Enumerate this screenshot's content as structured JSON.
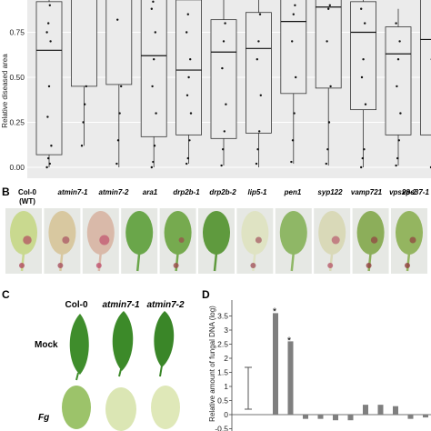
{
  "panels": {
    "B": "B",
    "C": "C",
    "D": "D"
  },
  "panel_a": {
    "ylabel": "Relative diseased area",
    "ticks": [
      "0.00",
      "0.25",
      "0.50",
      "0.75"
    ],
    "genotypes": [
      "Col-0",
      "atmin7-1",
      "atmin7-2",
      "ara1",
      "drp2b-1",
      "drp2b-2",
      "lip5-1",
      "pen1",
      "syp122",
      "vamp721",
      "vps28-2",
      "vps37-1"
    ],
    "wt_note": "(WT)"
  },
  "panel_c": {
    "columns": [
      "Col-0",
      "atmin7-1",
      "atmin7-2"
    ],
    "rows": [
      "Mock",
      "Fg"
    ]
  },
  "panel_d": {
    "ylabel": "Relative amount of fungal DNA (log)",
    "ticks": [
      "3.5",
      "3",
      "2.5",
      "2",
      "1.5",
      "1",
      "0.5",
      "0",
      "-0.5"
    ],
    "sig_marks": [
      "*",
      "*"
    ]
  },
  "chart_data": [
    {
      "type": "box",
      "ylabel": "Relative diseased area",
      "ylim": [
        -0.05,
        1.0
      ],
      "categories": [
        "Col-0",
        "atmin7-1",
        "atmin7-2",
        "ara1",
        "drp2b-1",
        "drp2b-2",
        "lip5-1",
        "pen1",
        "syp122",
        "vamp721",
        "vps28-2",
        "vps37-1"
      ],
      "boxes": [
        {
          "q1": 0.07,
          "median": 0.65,
          "q3": 0.92,
          "lo": 0.0,
          "hi": 1.0
        },
        {
          "q1": 0.45,
          "median": 0.95,
          "q3": 1.0,
          "lo": 0.12,
          "hi": 1.0
        },
        {
          "q1": 0.46,
          "median": 0.97,
          "q3": 1.0,
          "lo": 0.0,
          "hi": 1.0
        },
        {
          "q1": 0.17,
          "median": 0.62,
          "q3": 0.95,
          "lo": 0.0,
          "hi": 1.0
        },
        {
          "q1": 0.18,
          "median": 0.54,
          "q3": 0.93,
          "lo": 0.02,
          "hi": 1.0
        },
        {
          "q1": 0.16,
          "median": 0.64,
          "q3": 0.82,
          "lo": 0.01,
          "hi": 0.95
        },
        {
          "q1": 0.19,
          "median": 0.66,
          "q3": 0.86,
          "lo": 0.0,
          "hi": 0.95
        },
        {
          "q1": 0.41,
          "median": 0.81,
          "q3": 0.98,
          "lo": 0.02,
          "hi": 1.0
        },
        {
          "q1": 0.44,
          "median": 0.89,
          "q3": 1.0,
          "lo": 0.01,
          "hi": 1.0
        },
        {
          "q1": 0.32,
          "median": 0.75,
          "q3": 0.92,
          "lo": 0.0,
          "hi": 1.0
        },
        {
          "q1": 0.18,
          "median": 0.63,
          "q3": 0.78,
          "lo": 0.01,
          "hi": 0.88
        },
        {
          "q1": 0.18,
          "median": 0.71,
          "q3": 1.0,
          "lo": 0.0,
          "hi": 1.0
        }
      ],
      "points": [
        [
          0.0,
          0.05,
          0.02,
          0.12,
          0.28,
          0.45,
          0.7,
          0.75,
          0.8,
          0.9,
          0.95
        ],
        [
          0.12,
          0.25,
          0.35,
          0.45,
          0.95,
          1.0
        ],
        [
          0.02,
          0.15,
          0.3,
          0.45,
          0.82,
          1.0
        ],
        [
          0.0,
          0.03,
          0.12,
          0.3,
          0.45,
          0.6,
          0.75,
          0.88,
          0.92
        ],
        [
          0.02,
          0.05,
          0.15,
          0.3,
          0.4,
          0.5,
          0.6,
          0.75,
          0.85,
          0.95
        ],
        [
          0.01,
          0.1,
          0.2,
          0.35,
          0.55,
          0.7,
          0.8
        ],
        [
          0.02,
          0.1,
          0.2,
          0.4,
          0.6,
          0.7,
          0.85,
          0.95
        ],
        [
          0.03,
          0.15,
          0.3,
          0.5,
          0.7,
          0.85,
          0.9,
          0.95
        ],
        [
          0.02,
          0.1,
          0.25,
          0.45,
          0.7,
          0.88,
          0.9
        ],
        [
          0.0,
          0.05,
          0.1,
          0.35,
          0.5,
          0.6,
          0.8,
          0.88
        ],
        [
          0.01,
          0.05,
          0.15,
          0.3,
          0.45,
          0.6,
          0.7,
          0.8
        ],
        [
          0.0,
          0.1,
          0.25,
          0.45,
          0.6,
          0.7,
          0.88
        ]
      ]
    },
    {
      "type": "bar",
      "ylabel": "Relative amount of fungal DNA (log)",
      "ylim": [
        -0.5,
        3.5
      ],
      "values": [
        3.6,
        2.6,
        -0.15,
        -0.15,
        -0.2,
        -0.2,
        0.35,
        0.35,
        0.3,
        -0.15,
        -0.1
      ],
      "error_bar": {
        "center": 0.95,
        "lower": 0.15,
        "upper": 1.75
      },
      "significant": [
        0,
        1
      ]
    }
  ]
}
